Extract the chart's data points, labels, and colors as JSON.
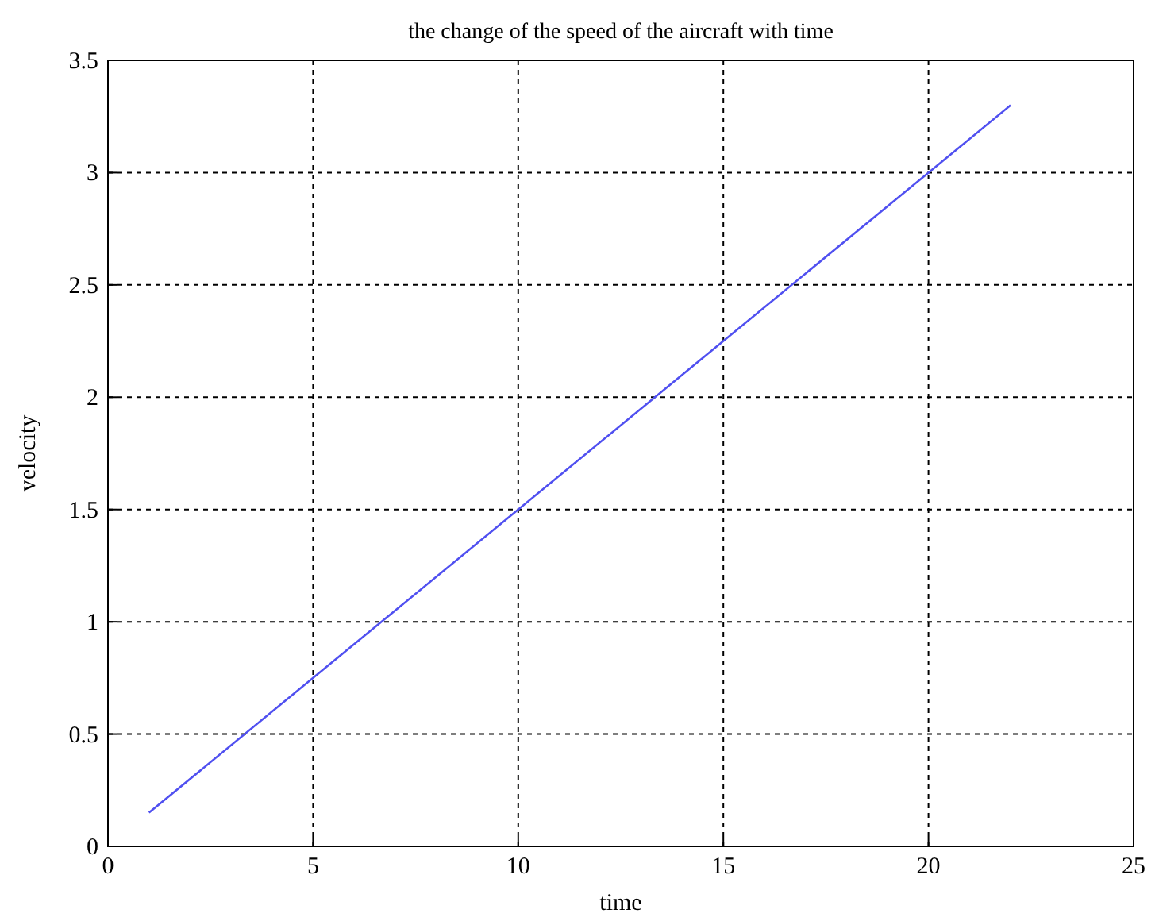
{
  "chart_data": {
    "type": "line",
    "title": "the change of the speed of the aircraft with time",
    "xlabel": "time",
    "ylabel": "velocity",
    "x": [
      1,
      5,
      10,
      15,
      20,
      22
    ],
    "series": [
      {
        "color": "#5050f0",
        "values": [
          0.15,
          0.75,
          1.5,
          2.25,
          3.0,
          3.3
        ]
      }
    ],
    "xlim": [
      0,
      25
    ],
    "xticks": [
      0,
      5,
      10,
      15,
      20,
      25
    ],
    "ylim": [
      0,
      3.5
    ],
    "yticks": [
      0,
      0.5,
      1,
      1.5,
      2,
      2.5,
      3,
      3.5
    ],
    "grid": true,
    "line_style": "solid",
    "marker": "none"
  }
}
